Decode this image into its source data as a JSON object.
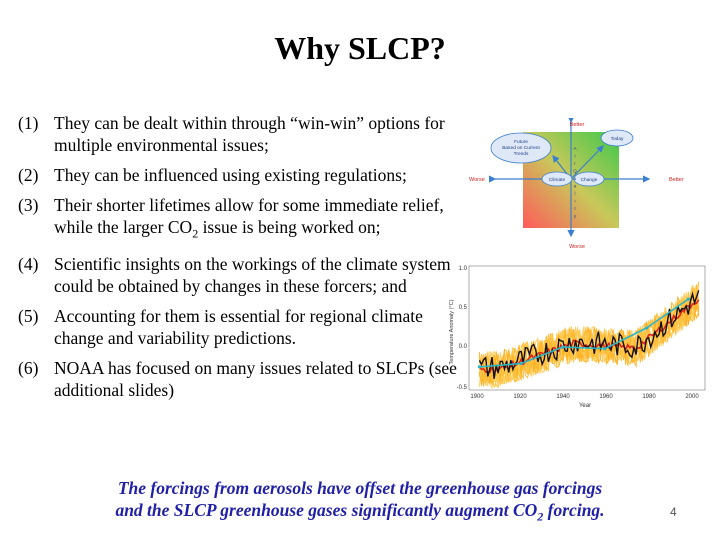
{
  "slide": {
    "title": "Why SLCP?",
    "items": [
      {
        "num": "(1)",
        "text": "They can be dealt within through “win-win” options for multiple environmental issues;"
      },
      {
        "num": "(2)",
        "text": "They can be influenced using existing regulations;"
      },
      {
        "num": "(3)",
        "text_a": "Their shorter lifetimes allow for some immediate relief, while the larger CO",
        "sub": "2",
        "text_b": " issue is being worked on;"
      },
      {
        "num": "(4)",
        "text": "Scientific insights on the workings of the climate system could be obtained by changes in these forcers; and"
      },
      {
        "num": "(5)",
        "text": "Accounting for them is essential for regional climate change and variability predictions."
      },
      {
        "num": "(6)",
        "text": "NOAA has focused on many issues related to SLCPs (see additional slides)"
      }
    ],
    "footer": {
      "line1": "The forcings from aerosols have offset the greenhouse gas forcings",
      "line2_a": "and the SLCP greenhouse gases significantly augment CO",
      "line2_sub": "2",
      "line2_b": " forcing."
    },
    "page_number": "4"
  },
  "diagram": {
    "better_top": "Better",
    "worse_bottom": "Worse",
    "worse_left": "Worse",
    "better_right": "Better",
    "future": [
      "Future",
      "Based on Current",
      "Trends"
    ],
    "today": "Today",
    "climate": "Climate",
    "change": "Change",
    "vertical_letters": [
      "A",
      "i",
      "r",
      "Q",
      "u",
      "a",
      "l",
      "i",
      "t",
      "y"
    ]
  },
  "temperature_chart": {
    "ylabel": "Temperature Anomaly (°C)",
    "xlabel": "Year",
    "yticks": [
      "1.0",
      "0.5",
      "0.0",
      "-0.5"
    ],
    "xticks": [
      "1900",
      "1920",
      "1940",
      "1960",
      "1980",
      "2000"
    ]
  }
}
